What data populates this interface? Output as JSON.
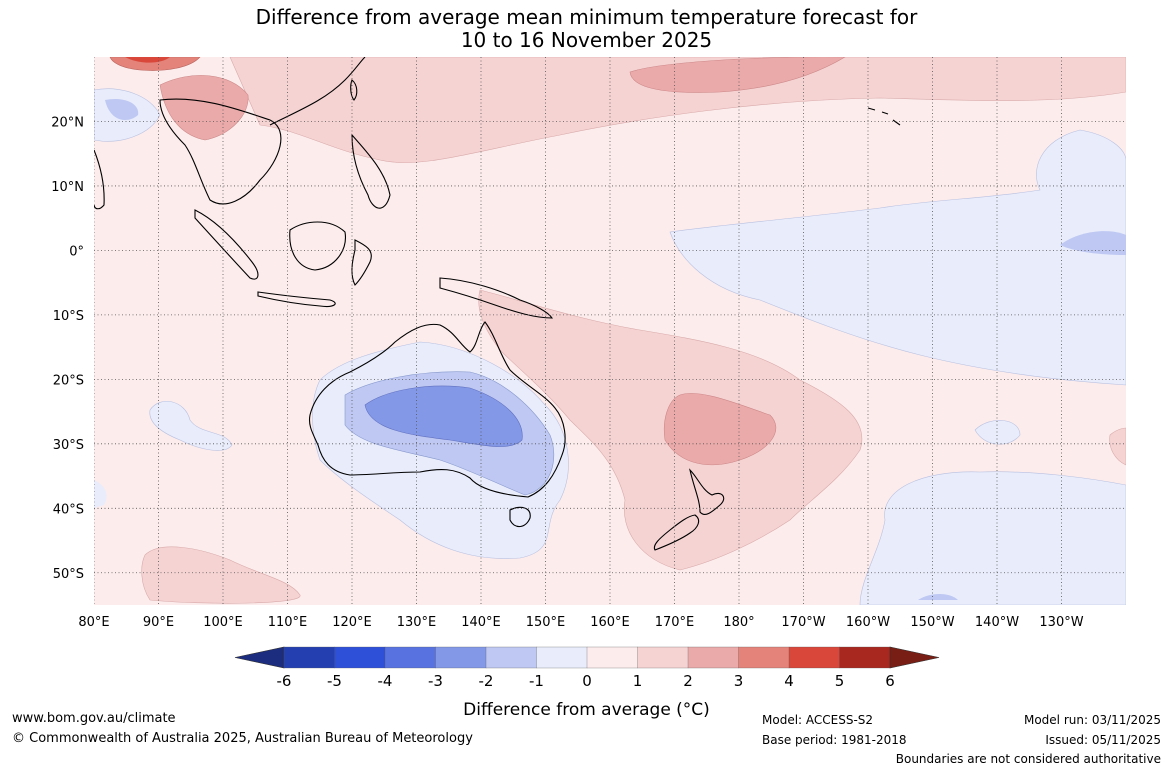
{
  "title": {
    "line1": "Difference from average mean minimum temperature forecast for",
    "line2": "10 to 16 November 2025"
  },
  "map": {
    "lon_range": [
      80,
      240
    ],
    "lat_range": [
      -55,
      30
    ],
    "lon_ticks": [
      "80°E",
      "90°E",
      "100°E",
      "110°E",
      "120°E",
      "130°E",
      "140°E",
      "150°E",
      "160°E",
      "170°E",
      "180°",
      "170°W",
      "160°W",
      "150°W",
      "140°W",
      "130°W"
    ],
    "lat_ticks": [
      "20°N",
      "10°N",
      "0°",
      "10°S",
      "20°S",
      "30°S",
      "40°S",
      "50°S"
    ],
    "lat_tick_values": [
      20,
      10,
      0,
      -10,
      -20,
      -30,
      -40,
      -50
    ]
  },
  "colorbar": {
    "label": "Difference from average (°C)",
    "ticks": [
      "-6",
      "-5",
      "-4",
      "-3",
      "-2",
      "-1",
      "0",
      "1",
      "2",
      "3",
      "4",
      "5",
      "6"
    ],
    "colors": [
      "#1c2d80",
      "#2440b0",
      "#2e50d8",
      "#5872e0",
      "#8498e8",
      "#bec8f2",
      "#e8ecfb",
      "#fcecec",
      "#f6d3d3",
      "#ebaaaa",
      "#e3837a",
      "#d9473a",
      "#a82820",
      "#781e14"
    ]
  },
  "footer": {
    "site": "www.bom.gov.au/climate",
    "copyright": "© Commonwealth of Australia 2025, Australian Bureau of Meteorology",
    "model": "Model: ACCESS-S2",
    "base_period": "Base period: 1981-2018",
    "model_run": "Model run: 03/11/2025",
    "issued": "Issued: 05/11/2025",
    "disclaimer": "Boundaries are not considered authoritative"
  }
}
